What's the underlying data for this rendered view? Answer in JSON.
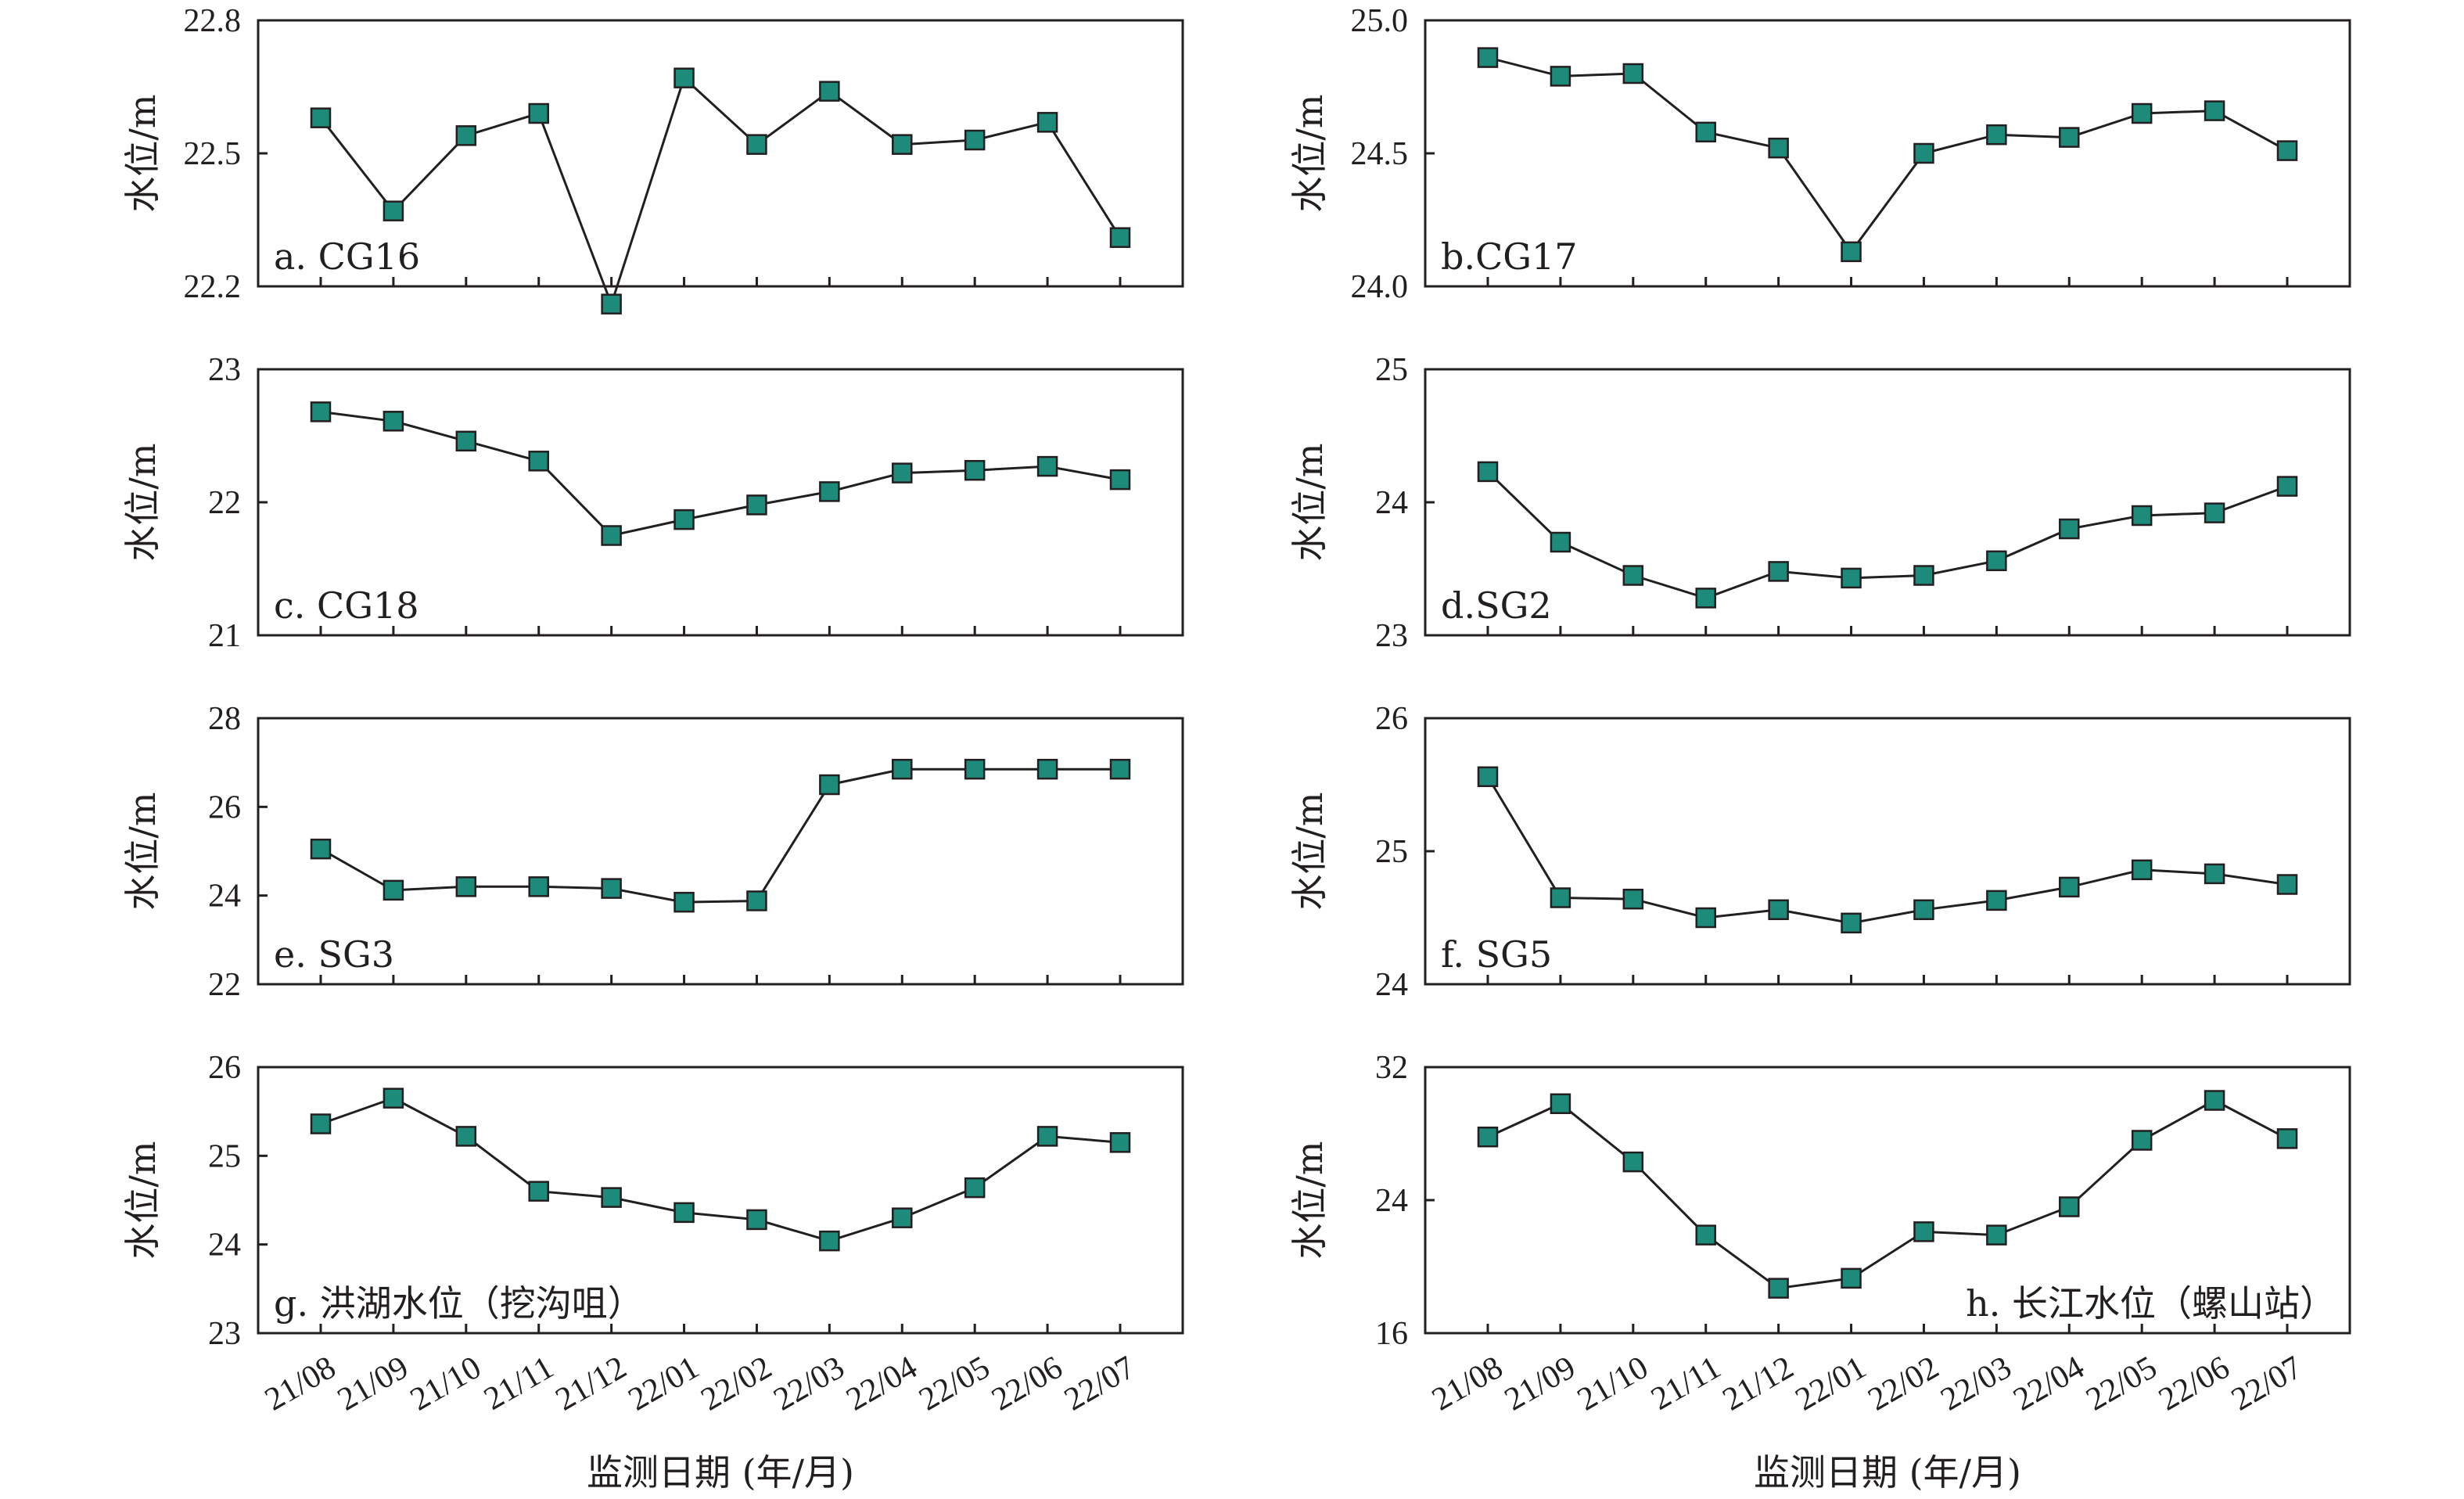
{
  "figure": {
    "x_axis_title": "监测日期 (年/月)",
    "y_axis_title": "水位/m"
  },
  "colors": {
    "marker_fill": "#1e8a7a",
    "marker_stroke": "#231f20",
    "line": "#231f20",
    "frame": "#231f20"
  },
  "chart_data": [
    {
      "type": "line",
      "label": "a. CG16",
      "label_position": "bottom-left",
      "ylabel": "水位/m",
      "xlabel": "",
      "categories": [
        "21/08",
        "21/09",
        "21/10",
        "21/11",
        "21/12",
        "22/01",
        "22/02",
        "22/03",
        "22/04",
        "22/05",
        "22/06",
        "22/07"
      ],
      "values": [
        22.58,
        22.37,
        22.54,
        22.59,
        22.16,
        22.67,
        22.52,
        22.64,
        22.52,
        22.53,
        22.57,
        22.31
      ],
      "ylim": [
        22.2,
        22.8
      ],
      "yticks": [
        22.2,
        22.5,
        22.8
      ],
      "ytick_labels": [
        "22.2",
        "22.5",
        "22.8"
      ],
      "marker": "square"
    },
    {
      "type": "line",
      "label": "b.CG17",
      "label_position": "bottom-left",
      "ylabel": "水位/m",
      "xlabel": "",
      "categories": [
        "21/08",
        "21/09",
        "21/10",
        "21/11",
        "21/12",
        "22/01",
        "22/02",
        "22/03",
        "22/04",
        "22/05",
        "22/06",
        "22/07"
      ],
      "values": [
        24.86,
        24.79,
        24.8,
        24.58,
        24.52,
        24.13,
        24.5,
        24.57,
        24.56,
        24.65,
        24.66,
        24.51
      ],
      "ylim": [
        24.0,
        25.0
      ],
      "yticks": [
        24.0,
        24.5,
        25.0
      ],
      "ytick_labels": [
        "24.0",
        "24.5",
        "25.0"
      ],
      "marker": "square"
    },
    {
      "type": "line",
      "label": "c. CG18",
      "label_position": "bottom-left",
      "ylabel": "水位/m",
      "xlabel": "",
      "categories": [
        "21/08",
        "21/09",
        "21/10",
        "21/11",
        "21/12",
        "22/01",
        "22/02",
        "22/03",
        "22/04",
        "22/05",
        "22/06",
        "22/07"
      ],
      "values": [
        22.68,
        22.61,
        22.46,
        22.31,
        21.75,
        21.87,
        21.98,
        22.08,
        22.22,
        22.24,
        22.27,
        22.17
      ],
      "ylim": [
        21,
        23
      ],
      "yticks": [
        21,
        22,
        23
      ],
      "ytick_labels": [
        "21",
        "22",
        "23"
      ],
      "marker": "square"
    },
    {
      "type": "line",
      "label": "d.SG2",
      "label_position": "bottom-left",
      "ylabel": "水位/m",
      "xlabel": "",
      "categories": [
        "21/08",
        "21/09",
        "21/10",
        "21/11",
        "21/12",
        "22/01",
        "22/02",
        "22/03",
        "22/04",
        "22/05",
        "22/06",
        "22/07"
      ],
      "values": [
        24.23,
        23.7,
        23.45,
        23.28,
        23.48,
        23.43,
        23.45,
        23.56,
        23.8,
        23.9,
        23.92,
        24.12
      ],
      "ylim": [
        23,
        25
      ],
      "yticks": [
        23,
        24,
        25
      ],
      "ytick_labels": [
        "23",
        "24",
        "25"
      ],
      "marker": "square"
    },
    {
      "type": "line",
      "label": "e. SG3",
      "label_position": "bottom-left",
      "ylabel": "水位/m",
      "xlabel": "",
      "categories": [
        "21/08",
        "21/09",
        "21/10",
        "21/11",
        "21/12",
        "22/01",
        "22/02",
        "22/03",
        "22/04",
        "22/05",
        "22/06",
        "22/07"
      ],
      "values": [
        25.05,
        24.12,
        24.2,
        24.2,
        24.16,
        23.85,
        23.88,
        26.5,
        26.85,
        26.85,
        26.85,
        26.85
      ],
      "ylim": [
        22,
        28
      ],
      "yticks": [
        22,
        24,
        26,
        28
      ],
      "ytick_labels": [
        "22",
        "24",
        "26",
        "28"
      ],
      "marker": "square"
    },
    {
      "type": "line",
      "label": "f. SG5",
      "label_position": "bottom-left",
      "ylabel": "水位/m",
      "xlabel": "",
      "categories": [
        "21/08",
        "21/09",
        "21/10",
        "21/11",
        "21/12",
        "22/01",
        "22/02",
        "22/03",
        "22/04",
        "22/05",
        "22/06",
        "22/07"
      ],
      "values": [
        25.56,
        24.65,
        24.64,
        24.5,
        24.56,
        24.46,
        24.56,
        24.63,
        24.73,
        24.86,
        24.83,
        24.75
      ],
      "ylim": [
        24,
        26
      ],
      "yticks": [
        24,
        25,
        26
      ],
      "ytick_labels": [
        "24",
        "25",
        "26"
      ],
      "marker": "square"
    },
    {
      "type": "line",
      "label": "g. 洪湖水位（挖沟咀）",
      "label_position": "bottom-left",
      "ylabel": "水位/m",
      "xlabel": "监测日期 (年/月)",
      "categories": [
        "21/08",
        "21/09",
        "21/10",
        "21/11",
        "21/12",
        "22/01",
        "22/02",
        "22/03",
        "22/04",
        "22/05",
        "22/06",
        "22/07"
      ],
      "values": [
        25.36,
        25.65,
        25.22,
        24.6,
        24.53,
        24.36,
        24.28,
        24.04,
        24.3,
        24.64,
        25.22,
        25.15
      ],
      "ylim": [
        23,
        26
      ],
      "yticks": [
        23,
        24,
        25,
        26
      ],
      "ytick_labels": [
        "23",
        "24",
        "25",
        "26"
      ],
      "marker": "square"
    },
    {
      "type": "line",
      "label": "h. 长江水位（螺山站）",
      "label_position": "bottom-right",
      "ylabel": "水位/m",
      "xlabel": "监测日期 (年/月)",
      "categories": [
        "21/08",
        "21/09",
        "21/10",
        "21/11",
        "21/12",
        "22/01",
        "22/02",
        "22/03",
        "22/04",
        "22/05",
        "22/06",
        "22/07"
      ],
      "values": [
        27.8,
        29.8,
        26.3,
        21.9,
        18.7,
        19.3,
        22.1,
        21.9,
        23.6,
        27.6,
        30.0,
        27.7
      ],
      "ylim": [
        16,
        32
      ],
      "yticks": [
        16,
        24,
        32
      ],
      "ytick_labels": [
        "16",
        "24",
        "32"
      ],
      "marker": "square"
    }
  ]
}
